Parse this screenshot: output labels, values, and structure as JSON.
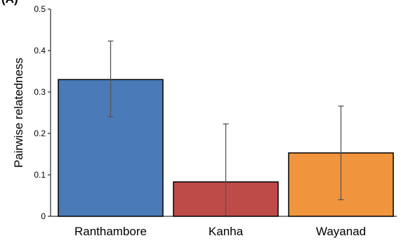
{
  "panel_label": "(A)",
  "chart_data": {
    "type": "bar",
    "categories": [
      "Ranthambore",
      "Kanha",
      "Wayanad"
    ],
    "values": [
      0.33,
      0.083,
      0.153
    ],
    "error_low": [
      0.24,
      0.0,
      0.04
    ],
    "error_high": [
      0.423,
      0.223,
      0.266
    ],
    "colors": [
      "#4A7AB8",
      "#BE4B48",
      "#F0953E"
    ],
    "ylabel": "Pairwise relatedness",
    "ylim": [
      0,
      0.5
    ],
    "yticks": [
      0,
      0.1,
      0.2,
      0.3,
      0.4,
      0.5
    ],
    "ytick_labels": [
      "0",
      "0.1",
      "0.2",
      "0.3",
      "0.4",
      "0.5"
    ],
    "grid": false,
    "legend": "none"
  }
}
